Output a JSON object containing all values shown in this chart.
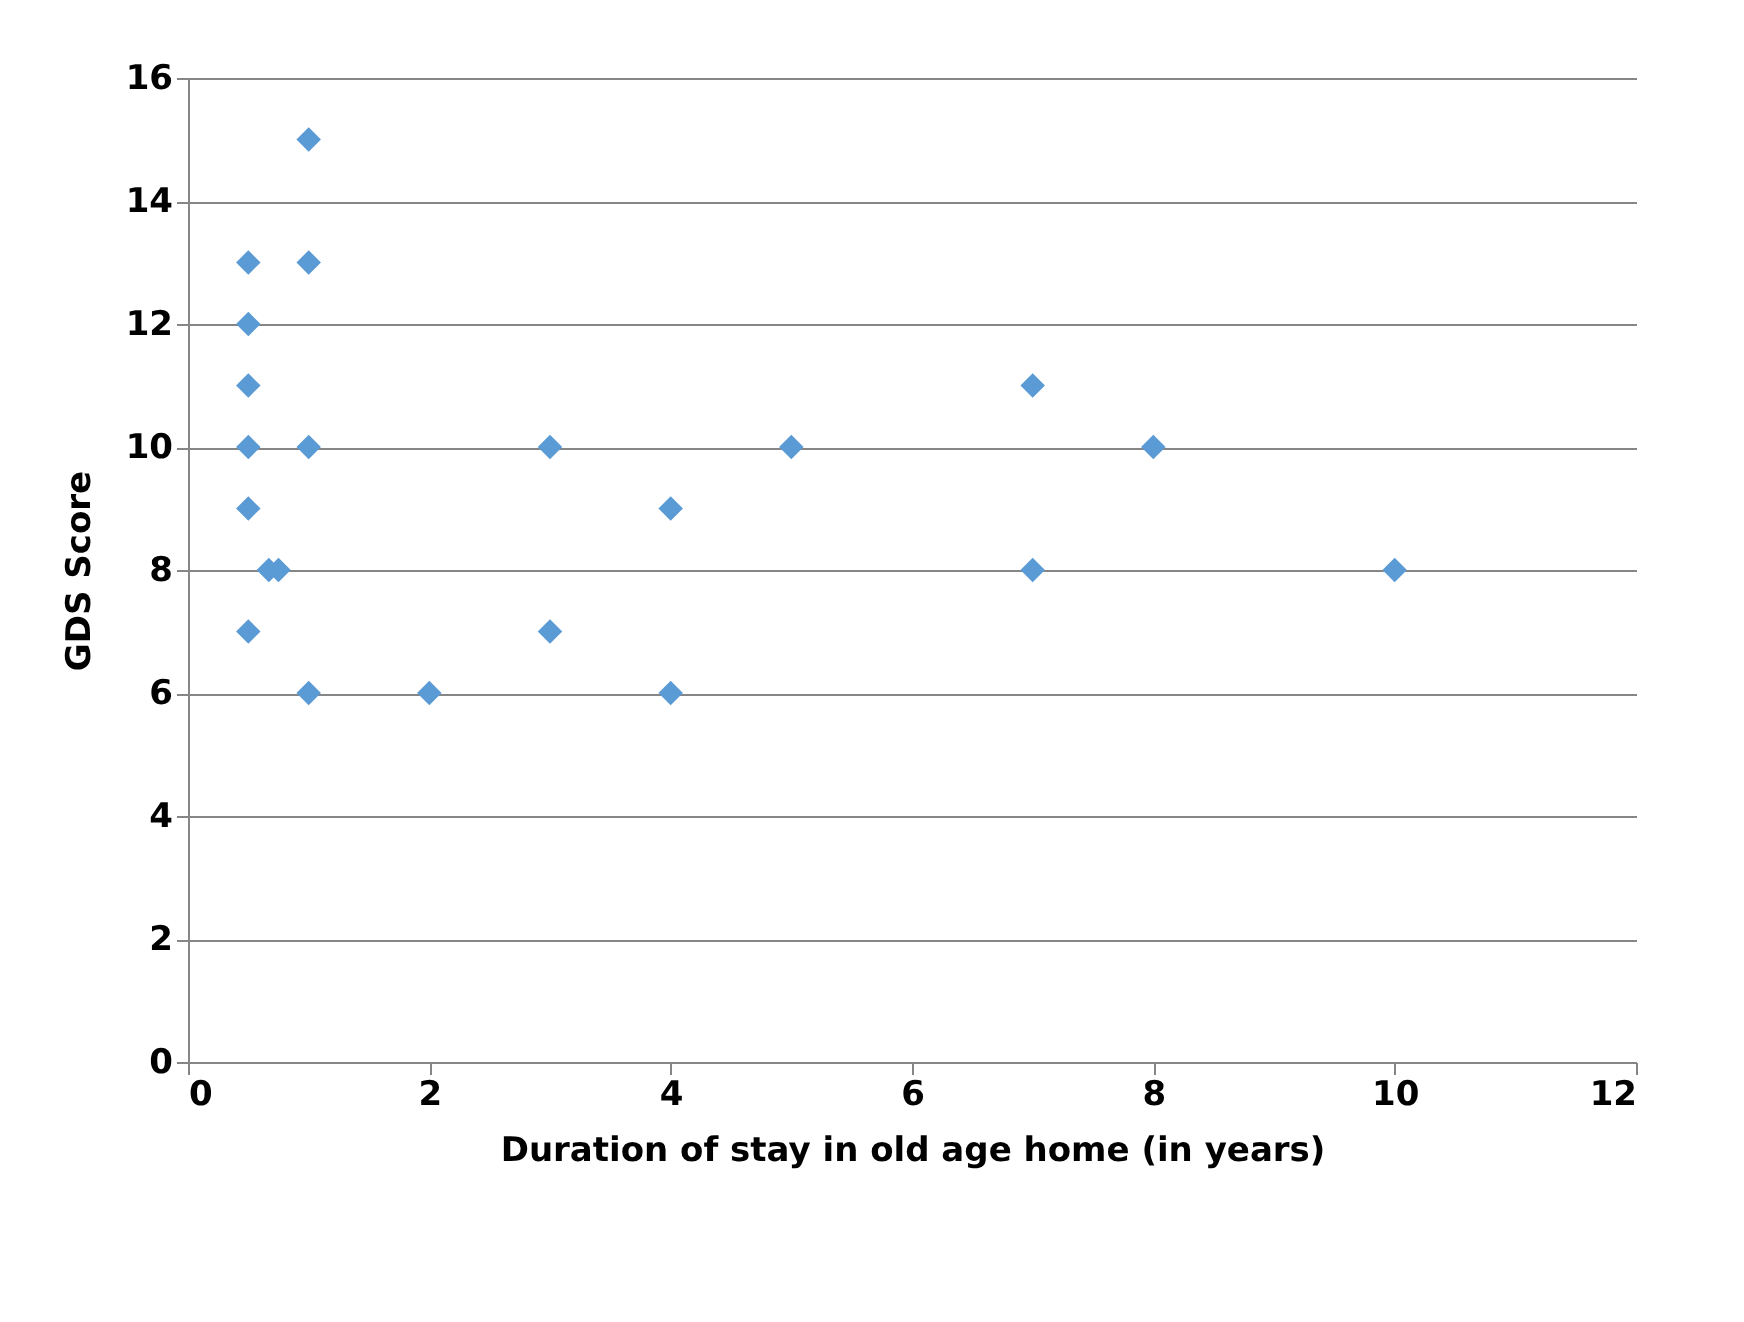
{
  "chart_data": {
    "type": "scatter",
    "xlabel": "Duration of stay in old age home (in years)",
    "ylabel": "GDS Score",
    "x": [
      0.5,
      0.5,
      0.5,
      0.5,
      0.5,
      0.5,
      0.67,
      0.75,
      1,
      1,
      1,
      1,
      2,
      3,
      3,
      4,
      4,
      5,
      7,
      7,
      8,
      10
    ],
    "series": [
      {
        "color": "#5b9bd5",
        "values": [
          13,
          12,
          11,
          10,
          9,
          7,
          8,
          8,
          15,
          13,
          10,
          6,
          6,
          10,
          7,
          9,
          6,
          10,
          11,
          8,
          10,
          8
        ]
      }
    ],
    "xlim": [
      0,
      12
    ],
    "xticks": [
      0,
      2,
      4,
      6,
      8,
      10,
      12
    ],
    "ylim": [
      0,
      16
    ],
    "yticks": [
      0,
      2,
      4,
      6,
      8,
      10,
      12,
      14,
      16
    ],
    "grid": "y",
    "marker": "diamond",
    "legend": false
  }
}
